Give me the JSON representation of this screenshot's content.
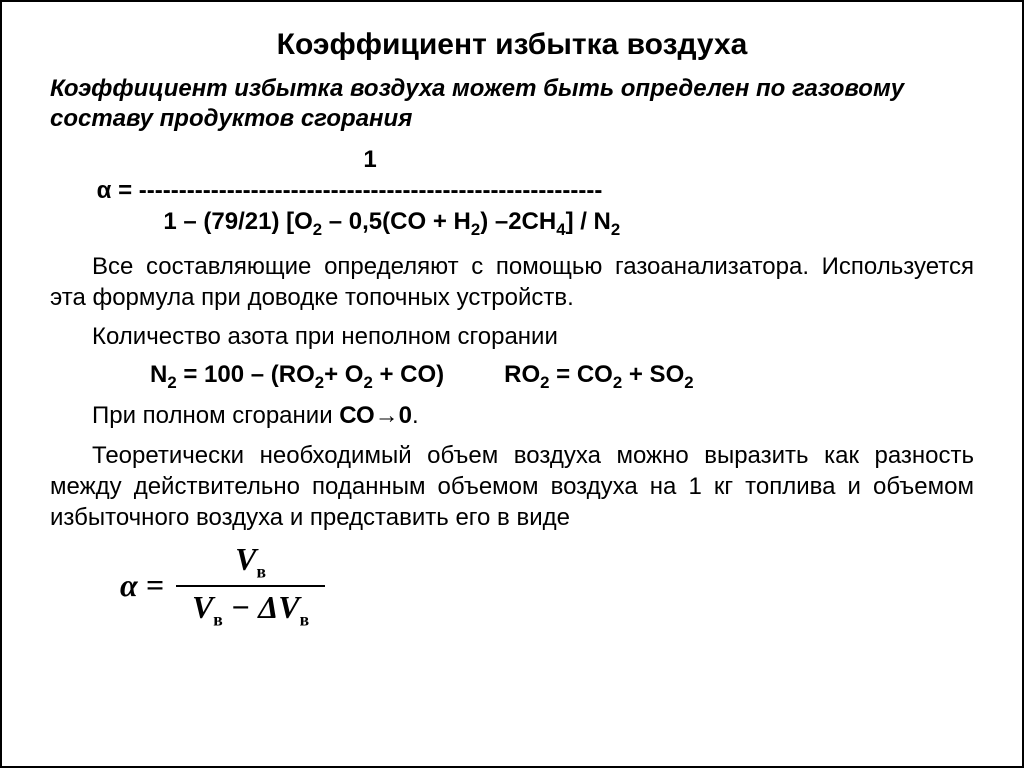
{
  "title": "Коэффициент избытка воздуха",
  "intro": "Коэффициент избытка воздуха может быть определен по газовому составу продуктов сгорания",
  "formula1_line1": "                                               1",
  "formula1_line2": "       α = ----------------------------------------------------------",
  "formula1_denom_prefix": "                 1 – (79/21) [O",
  "formula1_denom_mid1": " – 0,5(CO + H",
  "formula1_denom_mid2": ") –2CH",
  "formula1_denom_suffix": "] / N",
  "para1": "Все составляющие определяют с помощью газоанализатора. Используется эта формула при доводке топочных устройств.",
  "para2": "Количество азота при неполном сгорании",
  "eq_n2_a": "N",
  "eq_n2_b": " = 100 – (RO",
  "eq_n2_c": "+ O",
  "eq_n2_d": " + CO)",
  "eq_ro2_a": "RO",
  "eq_ro2_b": " = CO",
  "eq_ro2_c": " + SO",
  "para3_a": "При полном сгорании ",
  "para3_b": "СО→0",
  "para3_c": ".",
  "para4": "Теоретически необходимый объем воздуха можно выразить как разность между действительно поданным объемом воздуха на 1 кг топлива и объемом избыточного воздуха и представить его в виде",
  "frac": {
    "lhs": "α =",
    "num_V": "V",
    "den_V1": "V",
    "den_minus": " − Δ",
    "den_V2": "V",
    "sub": "в"
  }
}
